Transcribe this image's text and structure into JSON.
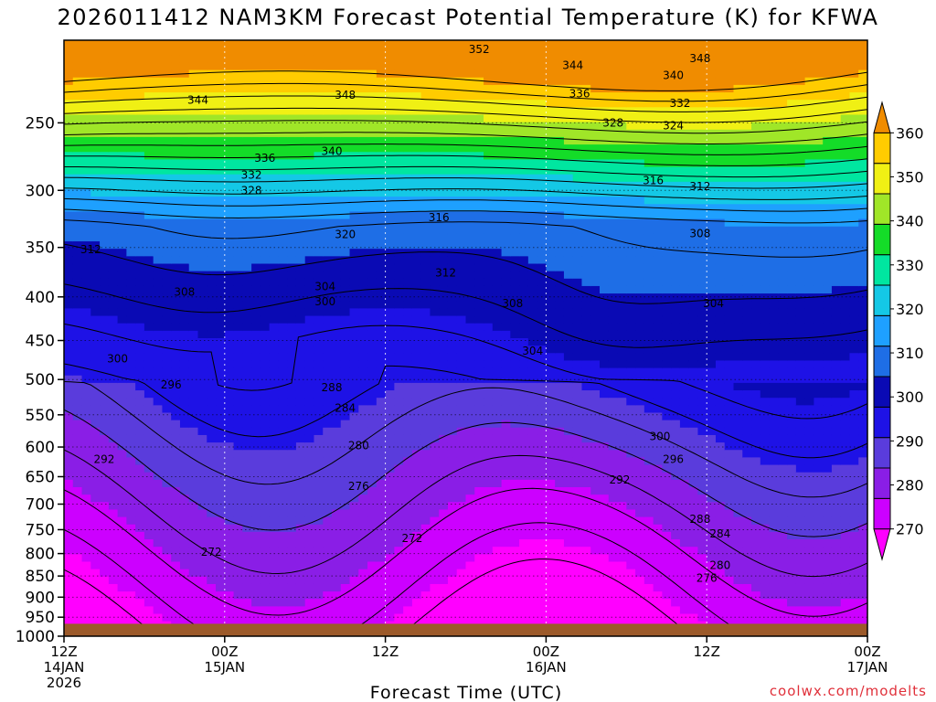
{
  "chart_data": {
    "type": "heatmap",
    "title": "2026011412 NAM3KM Forecast Potential Temperature (K) for KFWA",
    "xlabel": "Forecast Time (UTC)",
    "ylabel": "",
    "credit": "coolwx.com/modelts",
    "x_ticks": [
      {
        "hour": 0,
        "line1": "12Z",
        "line2": "14JAN",
        "line3": "2026"
      },
      {
        "hour": 12,
        "line1": "00Z",
        "line2": "15JAN",
        "line3": ""
      },
      {
        "hour": 24,
        "line1": "12Z",
        "line2": "",
        "line3": ""
      },
      {
        "hour": 36,
        "line1": "00Z",
        "line2": "16JAN",
        "line3": ""
      },
      {
        "hour": 48,
        "line1": "12Z",
        "line2": "",
        "line3": ""
      },
      {
        "hour": 60,
        "line1": "00Z",
        "line2": "17JAN",
        "line3": ""
      }
    ],
    "xlim": [
      0,
      60
    ],
    "y_ticks": [
      "250",
      "300",
      "350",
      "400",
      "450",
      "500",
      "550",
      "600",
      "650",
      "700",
      "750",
      "800",
      "850",
      "900",
      "950",
      "1000"
    ],
    "ylim_hpa": [
      200,
      1000
    ],
    "surface_hpa": 967,
    "colorbar": {
      "ticks": [
        "360",
        "350",
        "340",
        "330",
        "320",
        "310",
        "300",
        "290",
        "280",
        "270"
      ],
      "levels": [
        270,
        280,
        290,
        300,
        310,
        320,
        330,
        340,
        350,
        360
      ],
      "colors": [
        "#ff00ff",
        "#cc00ff",
        "#8a1ee6",
        "#5a3cdc",
        "#1e12e6",
        "#0a0ab4",
        "#1e6ee6",
        "#1ea0ff",
        "#14c8e6",
        "#00e6a0",
        "#14dc28",
        "#a0e628",
        "#f0f014",
        "#ffcc00",
        "#f08c00"
      ]
    },
    "labels": [
      {
        "text": "352",
        "hour": 31.0,
        "hpa": 205
      },
      {
        "text": "344",
        "hour": 38.0,
        "hpa": 214
      },
      {
        "text": "348",
        "hour": 47.5,
        "hpa": 210
      },
      {
        "text": "340",
        "hour": 45.5,
        "hpa": 220
      },
      {
        "text": "336",
        "hour": 38.5,
        "hpa": 231
      },
      {
        "text": "332",
        "hour": 46.0,
        "hpa": 237
      },
      {
        "text": "328",
        "hour": 41.0,
        "hpa": 250
      },
      {
        "text": "324",
        "hour": 45.5,
        "hpa": 252
      },
      {
        "text": "344",
        "hour": 10.0,
        "hpa": 235
      },
      {
        "text": "348",
        "hour": 21.0,
        "hpa": 232
      },
      {
        "text": "340",
        "hour": 20.0,
        "hpa": 270
      },
      {
        "text": "336",
        "hour": 15.0,
        "hpa": 275
      },
      {
        "text": "332",
        "hour": 14.0,
        "hpa": 288
      },
      {
        "text": "328",
        "hour": 14.0,
        "hpa": 300
      },
      {
        "text": "316",
        "hour": 44.0,
        "hpa": 292
      },
      {
        "text": "312",
        "hour": 47.5,
        "hpa": 297
      },
      {
        "text": "316",
        "hour": 28.0,
        "hpa": 323
      },
      {
        "text": "320",
        "hour": 21.0,
        "hpa": 338
      },
      {
        "text": "312",
        "hour": 2.0,
        "hpa": 352
      },
      {
        "text": "308",
        "hour": 47.5,
        "hpa": 337
      },
      {
        "text": "312",
        "hour": 28.5,
        "hpa": 375
      },
      {
        "text": "304",
        "hour": 19.5,
        "hpa": 389
      },
      {
        "text": "300",
        "hour": 19.5,
        "hpa": 405
      },
      {
        "text": "308",
        "hour": 9.0,
        "hpa": 395
      },
      {
        "text": "308",
        "hour": 33.5,
        "hpa": 407
      },
      {
        "text": "304",
        "hour": 48.5,
        "hpa": 407
      },
      {
        "text": "304",
        "hour": 35.0,
        "hpa": 463
      },
      {
        "text": "300",
        "hour": 4.0,
        "hpa": 473
      },
      {
        "text": "296",
        "hour": 8.0,
        "hpa": 507
      },
      {
        "text": "288",
        "hour": 20.0,
        "hpa": 511
      },
      {
        "text": "284",
        "hour": 21.0,
        "hpa": 540
      },
      {
        "text": "300",
        "hour": 44.5,
        "hpa": 583
      },
      {
        "text": "280",
        "hour": 22.0,
        "hpa": 598
      },
      {
        "text": "296",
        "hour": 45.5,
        "hpa": 620
      },
      {
        "text": "292",
        "hour": 3.0,
        "hpa": 620
      },
      {
        "text": "292",
        "hour": 41.5,
        "hpa": 656
      },
      {
        "text": "276",
        "hour": 22.0,
        "hpa": 667
      },
      {
        "text": "288",
        "hour": 47.5,
        "hpa": 729
      },
      {
        "text": "284",
        "hour": 49.0,
        "hpa": 758
      },
      {
        "text": "272",
        "hour": 26.0,
        "hpa": 768
      },
      {
        "text": "272",
        "hour": 11.0,
        "hpa": 797
      },
      {
        "text": "280",
        "hour": 49.0,
        "hpa": 826
      },
      {
        "text": "276",
        "hour": 48.0,
        "hpa": 855
      }
    ]
  }
}
